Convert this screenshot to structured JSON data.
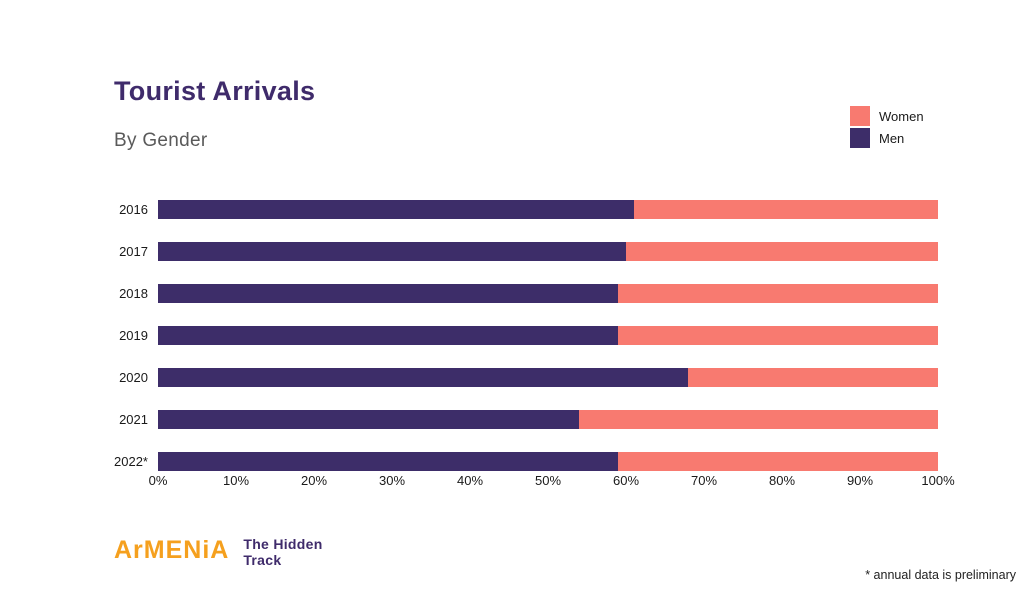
{
  "header": {
    "title": "Tourist Arrivals",
    "subtitle": "By Gender"
  },
  "legend": {
    "items": [
      {
        "label": "Women",
        "color": "#f87a70"
      },
      {
        "label": "Men",
        "color": "#3d2d69"
      }
    ]
  },
  "chart_data": {
    "type": "bar",
    "stacked": true,
    "orientation": "horizontal",
    "title": "Tourist Arrivals",
    "subtitle": "By Gender",
    "categories": [
      "2016",
      "2017",
      "2018",
      "2019",
      "2020",
      "2021",
      "2022*"
    ],
    "series": [
      {
        "name": "Men",
        "color": "#3d2d69",
        "values": [
          61,
          60,
          59,
          59,
          68,
          54,
          59
        ]
      },
      {
        "name": "Women",
        "color": "#f87a70",
        "values": [
          39,
          40,
          41,
          41,
          32,
          46,
          41
        ]
      }
    ],
    "xlim": [
      0,
      100
    ],
    "x_ticks": [
      "0%",
      "10%",
      "20%",
      "30%",
      "40%",
      "50%",
      "60%",
      "70%",
      "80%",
      "90%",
      "100%"
    ],
    "legend_position": "top-right",
    "grid": false
  },
  "footer": {
    "logo_primary": "ArMENiA",
    "logo_secondary_line1": "The Hidden",
    "logo_secondary_line2": "Track",
    "note": "* annual data is preliminary"
  }
}
